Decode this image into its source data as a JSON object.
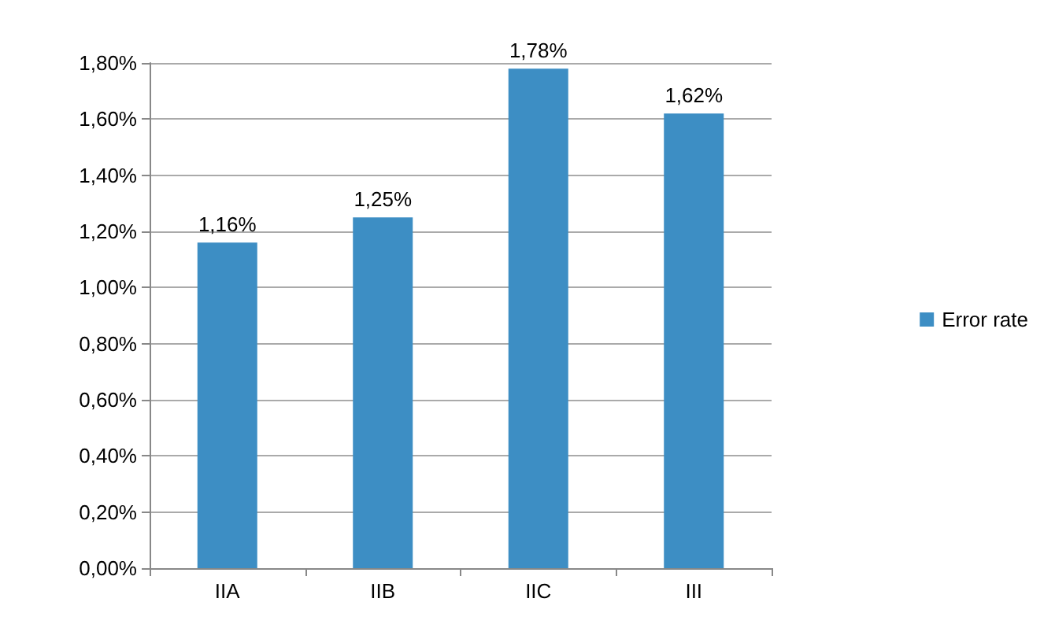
{
  "chart_data": {
    "type": "bar",
    "categories": [
      "IIA",
      "IIB",
      "IIC",
      "III"
    ],
    "series": [
      {
        "name": "Error rate",
        "color": "#3d8ec4",
        "values": [
          1.16,
          1.25,
          1.78,
          1.62
        ],
        "value_labels": [
          "1,16%",
          "1,25%",
          "1,78%",
          "1,62%"
        ]
      }
    ],
    "ylim": [
      0,
      1.8
    ],
    "yticks": [
      {
        "value": 0,
        "label": "0,00%"
      },
      {
        "value": 0.2,
        "label": "0,20%"
      },
      {
        "value": 0.4,
        "label": "0,40%"
      },
      {
        "value": 0.6,
        "label": "0,60%"
      },
      {
        "value": 0.8,
        "label": "0,80%"
      },
      {
        "value": 1.0,
        "label": "1,00%"
      },
      {
        "value": 1.2,
        "label": "1,20%"
      },
      {
        "value": 1.4,
        "label": "1,40%"
      },
      {
        "value": 1.6,
        "label": "1,60%"
      },
      {
        "value": 1.8,
        "label": "1,80%"
      }
    ],
    "grid": "y",
    "legend": "right"
  }
}
